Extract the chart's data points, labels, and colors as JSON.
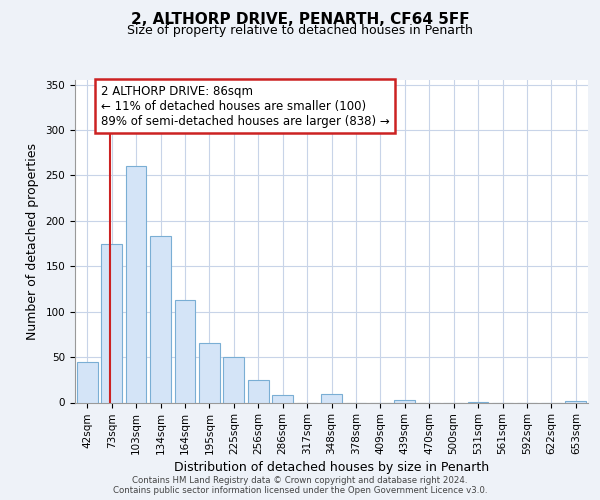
{
  "title1": "2, ALTHORP DRIVE, PENARTH, CF64 5FF",
  "title2": "Size of property relative to detached houses in Penarth",
  "xlabel": "Distribution of detached houses by size in Penarth",
  "ylabel": "Number of detached properties",
  "categories": [
    "42sqm",
    "73sqm",
    "103sqm",
    "134sqm",
    "164sqm",
    "195sqm",
    "225sqm",
    "256sqm",
    "286sqm",
    "317sqm",
    "348sqm",
    "378sqm",
    "409sqm",
    "439sqm",
    "470sqm",
    "500sqm",
    "531sqm",
    "561sqm",
    "592sqm",
    "622sqm",
    "653sqm"
  ],
  "values": [
    45,
    175,
    260,
    183,
    113,
    65,
    50,
    25,
    8,
    0,
    9,
    0,
    0,
    3,
    0,
    0,
    1,
    0,
    0,
    0,
    2
  ],
  "bar_color": "#d4e4f7",
  "bar_edge_color": "#7aaed4",
  "annotation_box_text_line1": "2 ALTHORP DRIVE: 86sqm",
  "annotation_box_text_line2": "← 11% of detached houses are smaller (100)",
  "annotation_box_text_line3": "89% of semi-detached houses are larger (838) →",
  "vline_color": "#cc2222",
  "box_edge_color": "#cc2222",
  "ylim": [
    0,
    355
  ],
  "yticks": [
    0,
    50,
    100,
    150,
    200,
    250,
    300,
    350
  ],
  "footer1": "Contains HM Land Registry data © Crown copyright and database right 2024.",
  "footer2": "Contains public sector information licensed under the Open Government Licence v3.0.",
  "background_color": "#eef2f8",
  "plot_bg_color": "#ffffff",
  "grid_color": "#c8d4e8",
  "title1_fontsize": 11,
  "title2_fontsize": 9,
  "xlabel_fontsize": 9,
  "ylabel_fontsize": 9,
  "tick_fontsize": 7.5,
  "ann_fontsize": 8.5
}
